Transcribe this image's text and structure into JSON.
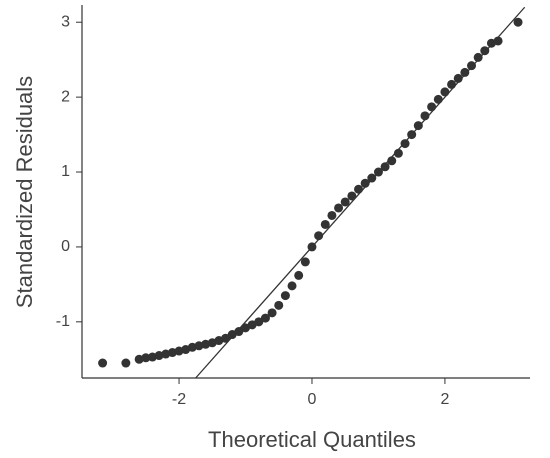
{
  "chart_data": {
    "type": "scatter",
    "x_label": "Theoretical Quantiles",
    "y_label": "Standardized Residuals",
    "x": [
      -3.15,
      -2.8,
      -2.6,
      -2.5,
      -2.4,
      -2.3,
      -2.2,
      -2.1,
      -2.0,
      -1.9,
      -1.8,
      -1.7,
      -1.6,
      -1.5,
      -1.4,
      -1.3,
      -1.2,
      -1.1,
      -1.0,
      -0.9,
      -0.8,
      -0.7,
      -0.6,
      -0.5,
      -0.4,
      -0.3,
      -0.2,
      -0.1,
      0,
      0.1,
      0.2,
      0.3,
      0.4,
      0.5,
      0.6,
      0.7,
      0.8,
      0.9,
      1.0,
      1.1,
      1.2,
      1.3,
      1.4,
      1.5,
      1.6,
      1.7,
      1.8,
      1.9,
      2.0,
      2.1,
      2.2,
      2.3,
      2.4,
      2.5,
      2.6,
      2.7,
      2.8,
      3.1
    ],
    "values": [
      -1.55,
      -1.55,
      -1.5,
      -1.48,
      -1.47,
      -1.45,
      -1.43,
      -1.41,
      -1.39,
      -1.37,
      -1.34,
      -1.32,
      -1.3,
      -1.28,
      -1.25,
      -1.22,
      -1.17,
      -1.13,
      -1.08,
      -1.04,
      -1.0,
      -0.95,
      -0.88,
      -0.78,
      -0.65,
      -0.52,
      -0.38,
      -0.2,
      0,
      0.15,
      0.3,
      0.42,
      0.52,
      0.6,
      0.68,
      0.77,
      0.85,
      0.92,
      1.0,
      1.07,
      1.15,
      1.25,
      1.38,
      1.5,
      1.62,
      1.75,
      1.87,
      1.97,
      2.07,
      2.17,
      2.25,
      2.33,
      2.42,
      2.53,
      2.62,
      2.72,
      2.75,
      3.0
    ],
    "color": "#333333",
    "reference_line": {
      "x": [
        -1.75,
        3.2
      ],
      "y": [
        -1.75,
        3.2
      ],
      "color": "#333333"
    },
    "xlim": [
      -3.46,
      3.28
    ],
    "xticks": [
      -2,
      0,
      2
    ],
    "ylim": [
      -1.75,
      3.23
    ],
    "yticks": [
      -1,
      0,
      1,
      2,
      3
    ]
  }
}
